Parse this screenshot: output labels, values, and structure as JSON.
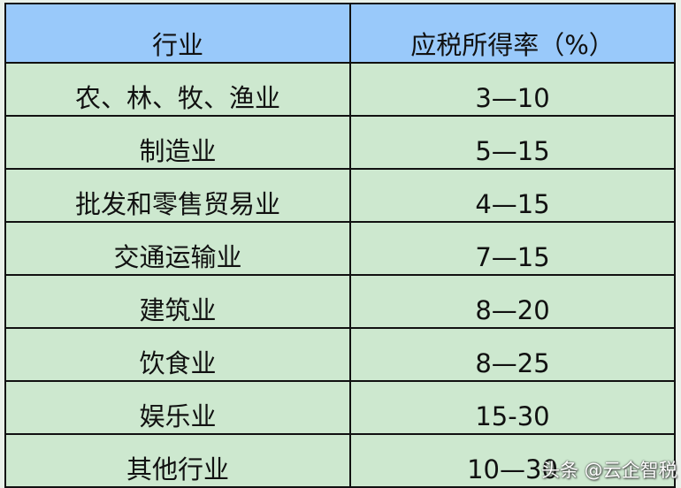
{
  "table": {
    "headers": [
      "行业",
      "应税所得率（%）"
    ],
    "rows": [
      [
        "农、林、牧、渔业",
        "3—10"
      ],
      [
        "制造业",
        "5—15"
      ],
      [
        "批发和零售贸易业",
        "4—15"
      ],
      [
        "交通运输业",
        "7—15"
      ],
      [
        "建筑业",
        "8—20"
      ],
      [
        "饮食业",
        "8—25"
      ],
      [
        "娱乐业",
        "15-30"
      ],
      [
        "其他行业",
        "10—30"
      ]
    ]
  },
  "watermark": "头条 @云企智税",
  "colors": {
    "header_bg": "#99c9fa",
    "row_bg": "#cde8cf"
  }
}
